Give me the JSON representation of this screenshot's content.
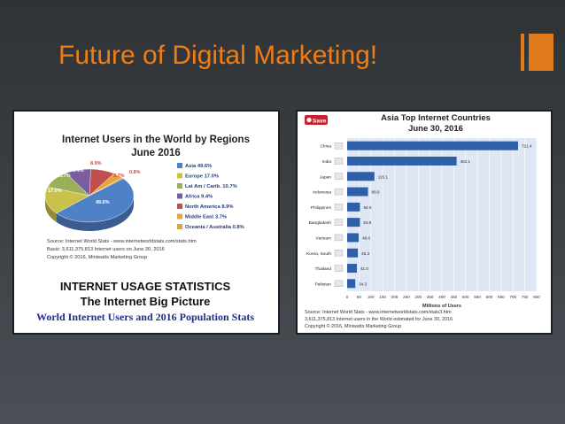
{
  "slide": {
    "title": "Future of Digital Marketing!",
    "colors": {
      "title": "#f07d14",
      "background": "#343a3e"
    }
  },
  "left_panel": {
    "chart_title_line1": "Internet Users in the World by Regions",
    "chart_title_line2": "June 2016",
    "source_line1": "Source: Internet World Stats - www.internetworldstats.com/stats.htm",
    "source_line2": "Basis: 3,611,375,813 Internet users on June 30, 2016",
    "source_line3": "Copyright © 2016, Miniwatts Marketing Group",
    "heading1": "INTERNET USAGE STATISTICS",
    "heading2": "The Internet Big Picture",
    "heading3": "World Internet Users and 2016 Population Stats"
  },
  "right_panel": {
    "save_label": "Save",
    "chart_title_line1": "Asia Top Internet Countries",
    "chart_title_line2": "June 30, 2016",
    "source_line1": "Source: Internet World Stats - www.internetworldstats.com/stats3.htm",
    "source_line2": "3,611,375,813 Internet users in the World estimated for June 30, 2016",
    "source_line3": "Copyright © 2016, Miniwatts Marketing Group"
  },
  "chart_data": [
    {
      "type": "pie",
      "title": "Internet Users in the World by Regions",
      "subtitle": "June 2016",
      "slices": [
        {
          "label": "Asia 49.6%",
          "value": 49.6,
          "color": "#4f81c7"
        },
        {
          "label": "Europe 17.0%",
          "value": 17.0,
          "color": "#c9c24a"
        },
        {
          "label": "Lat Am / Carib. 10.7%",
          "value": 10.7,
          "color": "#9aae5c"
        },
        {
          "label": "Africa 9.4%",
          "value": 9.4,
          "color": "#7a5fa0"
        },
        {
          "label": "North America 8.9%",
          "value": 8.9,
          "color": "#c0504d"
        },
        {
          "label": "Middle East 3.7%",
          "value": 3.7,
          "color": "#e8a33d"
        },
        {
          "label": "Oceania / Australia 0.8%",
          "value": 0.8,
          "color": "#d6a14a"
        }
      ],
      "pie_labels": [
        "49.6%",
        "17.0%",
        "10.7%",
        "9.4%",
        "8.9%",
        "3.7%",
        "0.8%"
      ],
      "legend_position": "right"
    },
    {
      "type": "bar",
      "orientation": "horizontal",
      "title": "Asia Top Internet Countries",
      "subtitle": "June 30, 2016",
      "categories": [
        "China",
        "India",
        "Japan",
        "Indonesia",
        "Philippines",
        "Bangladesh",
        "Vietnam",
        "Korea, South",
        "Thailand",
        "Pakistan"
      ],
      "values": [
        721.4,
        462.1,
        115.1,
        88.0,
        54.0,
        53.9,
        49.0,
        45.3,
        41.0,
        34.3
      ],
      "value_labels": [
        "721.4",
        "462.1",
        "115.1",
        "88.0",
        "54.0",
        "53.9",
        "49.0",
        "45.3",
        "41.0",
        "34.3"
      ],
      "xlabel": "Millions of Users",
      "xlim": [
        0,
        800
      ],
      "xticks": [
        "0",
        "50",
        "100",
        "150",
        "200",
        "250",
        "300",
        "350",
        "400",
        "450",
        "500",
        "550",
        "600",
        "650",
        "700",
        "750",
        "800"
      ],
      "grid": true,
      "bar_color": "#2f5fa8"
    }
  ]
}
